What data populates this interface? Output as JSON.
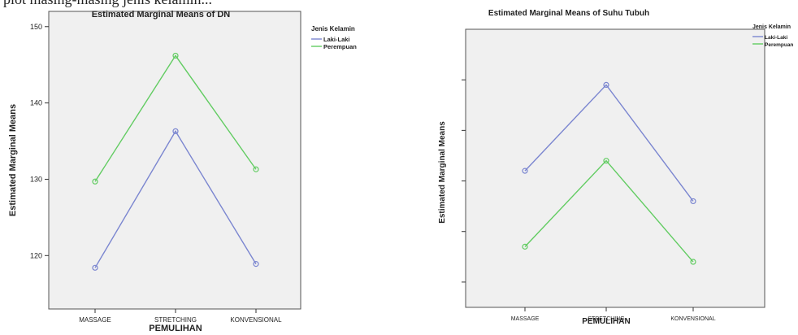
{
  "top_strip": {
    "left_text": "plot masing-masing jenis kelamin...",
    "right_text": ""
  },
  "chart_data": [
    {
      "type": "line",
      "title": "Estimated Marginal Means of DN",
      "xlabel": "PEMULIHAN",
      "ylabel": "Estimated Marginal Means",
      "categories": [
        "MASSAGE",
        "STRETCHING",
        "KONVENSIONAL"
      ],
      "ylim": [
        113,
        152
      ],
      "yticks": [
        120,
        130,
        140,
        150
      ],
      "show_tick_labels": true,
      "grid": false,
      "legend_title": "Jenis Kelamin",
      "legend_position": "right",
      "series": [
        {
          "name": "Laki-Laki",
          "color": "#7b86d0",
          "values": [
            118.4,
            136.3,
            118.9
          ]
        },
        {
          "name": "Perempuan",
          "color": "#62cc62",
          "values": [
            129.7,
            146.2,
            131.3
          ]
        }
      ]
    },
    {
      "type": "line",
      "title": "Estimated Marginal Means of Suhu Tubuh",
      "xlabel": "PEMULIHAN",
      "ylabel": "Estimated Marginal Means",
      "categories": [
        "MASSAGE",
        "STRETCHING",
        "KONVENSIONAL"
      ],
      "ylim": [
        35.75,
        36.3
      ],
      "yticks": [
        35.8,
        35.9,
        36.0,
        36.1,
        36.2
      ],
      "show_tick_labels": false,
      "grid": false,
      "legend_title": "Jenis Kelamin",
      "legend_position": "right",
      "series": [
        {
          "name": "Laki-Laki",
          "color": "#7b86d0",
          "values": [
            36.02,
            36.19,
            35.96
          ]
        },
        {
          "name": "Perempuan",
          "color": "#62cc62",
          "values": [
            35.87,
            36.04,
            35.84
          ]
        }
      ]
    }
  ]
}
